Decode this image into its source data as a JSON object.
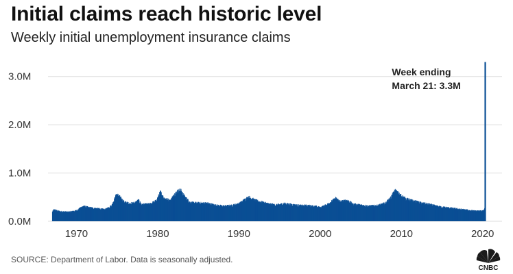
{
  "header": {
    "title": "Initial claims reach historic level",
    "subtitle": "Weekly initial unemployment insurance claims"
  },
  "footer": {
    "source": "SOURCE: Department of Labor. Data is seasonally adjusted.",
    "logo_text": "CNBC"
  },
  "colors": {
    "bar": "#0b4f95",
    "grid": "#dddddd",
    "text": "#333333"
  },
  "chart_data": {
    "type": "bar",
    "title": "Initial claims reach historic level",
    "subtitle": "Weekly initial unemployment insurance claims",
    "xlabel": "",
    "ylabel": "",
    "frequency": "weekly",
    "xlim": [
      1966.5,
      2020.7
    ],
    "ylim": [
      0,
      3.45
    ],
    "y_unit": "millions",
    "yticks": [
      0,
      1,
      2,
      3
    ],
    "ytick_labels": [
      "0.0M",
      "1.0M",
      "2.0M",
      "3.0M"
    ],
    "xticks": [
      1970,
      1980,
      1990,
      2000,
      2010,
      2020
    ],
    "xtick_labels": [
      "1970",
      "1980",
      "1990",
      "2000",
      "2010",
      "2020"
    ],
    "grid": "horizontal",
    "series": [
      {
        "keypoints": [
          [
            1967.0,
            0.19
          ],
          [
            1967.2,
            0.24
          ],
          [
            1967.5,
            0.22
          ],
          [
            1968.0,
            0.2
          ],
          [
            1969.0,
            0.19
          ],
          [
            1970.0,
            0.22
          ],
          [
            1970.8,
            0.31
          ],
          [
            1971.5,
            0.28
          ],
          [
            1972.5,
            0.26
          ],
          [
            1973.5,
            0.24
          ],
          [
            1974.3,
            0.32
          ],
          [
            1974.9,
            0.55
          ],
          [
            1975.2,
            0.52
          ],
          [
            1975.8,
            0.4
          ],
          [
            1976.5,
            0.36
          ],
          [
            1977.2,
            0.38
          ],
          [
            1977.6,
            0.43
          ],
          [
            1978.0,
            0.34
          ],
          [
            1979.0,
            0.35
          ],
          [
            1979.8,
            0.42
          ],
          [
            1980.3,
            0.6
          ],
          [
            1980.7,
            0.48
          ],
          [
            1981.5,
            0.42
          ],
          [
            1982.0,
            0.55
          ],
          [
            1982.5,
            0.62
          ],
          [
            1982.8,
            0.63
          ],
          [
            1983.3,
            0.5
          ],
          [
            1984.0,
            0.38
          ],
          [
            1985.0,
            0.37
          ],
          [
            1986.0,
            0.37
          ],
          [
            1987.0,
            0.33
          ],
          [
            1988.0,
            0.31
          ],
          [
            1989.0,
            0.32
          ],
          [
            1990.0,
            0.36
          ],
          [
            1990.9,
            0.47
          ],
          [
            1991.3,
            0.49
          ],
          [
            1991.9,
            0.43
          ],
          [
            1992.5,
            0.4
          ],
          [
            1993.5,
            0.36
          ],
          [
            1994.5,
            0.33
          ],
          [
            1995.5,
            0.36
          ],
          [
            1996.5,
            0.34
          ],
          [
            1997.5,
            0.32
          ],
          [
            1998.5,
            0.32
          ],
          [
            1999.5,
            0.3
          ],
          [
            2000.0,
            0.28
          ],
          [
            2000.8,
            0.34
          ],
          [
            2001.5,
            0.42
          ],
          [
            2001.9,
            0.47
          ],
          [
            2002.5,
            0.4
          ],
          [
            2003.3,
            0.43
          ],
          [
            2004.0,
            0.35
          ],
          [
            2005.0,
            0.33
          ],
          [
            2006.0,
            0.31
          ],
          [
            2007.0,
            0.32
          ],
          [
            2008.0,
            0.37
          ],
          [
            2008.6,
            0.47
          ],
          [
            2009.2,
            0.63
          ],
          [
            2009.7,
            0.55
          ],
          [
            2010.5,
            0.46
          ],
          [
            2011.5,
            0.41
          ],
          [
            2012.5,
            0.37
          ],
          [
            2013.5,
            0.34
          ],
          [
            2014.5,
            0.3
          ],
          [
            2015.5,
            0.28
          ],
          [
            2016.5,
            0.26
          ],
          [
            2017.5,
            0.24
          ],
          [
            2018.5,
            0.22
          ],
          [
            2019.0,
            0.21
          ],
          [
            2019.9,
            0.21
          ],
          [
            2020.15,
            0.22
          ],
          [
            2020.22,
            0.28
          ],
          [
            2020.23,
            3.3
          ]
        ]
      }
    ],
    "annotations": [
      {
        "text_lines": [
          "Week ending",
          "March 21: 3.3M"
        ],
        "x": 2020.23,
        "y": 3.3
      }
    ]
  }
}
